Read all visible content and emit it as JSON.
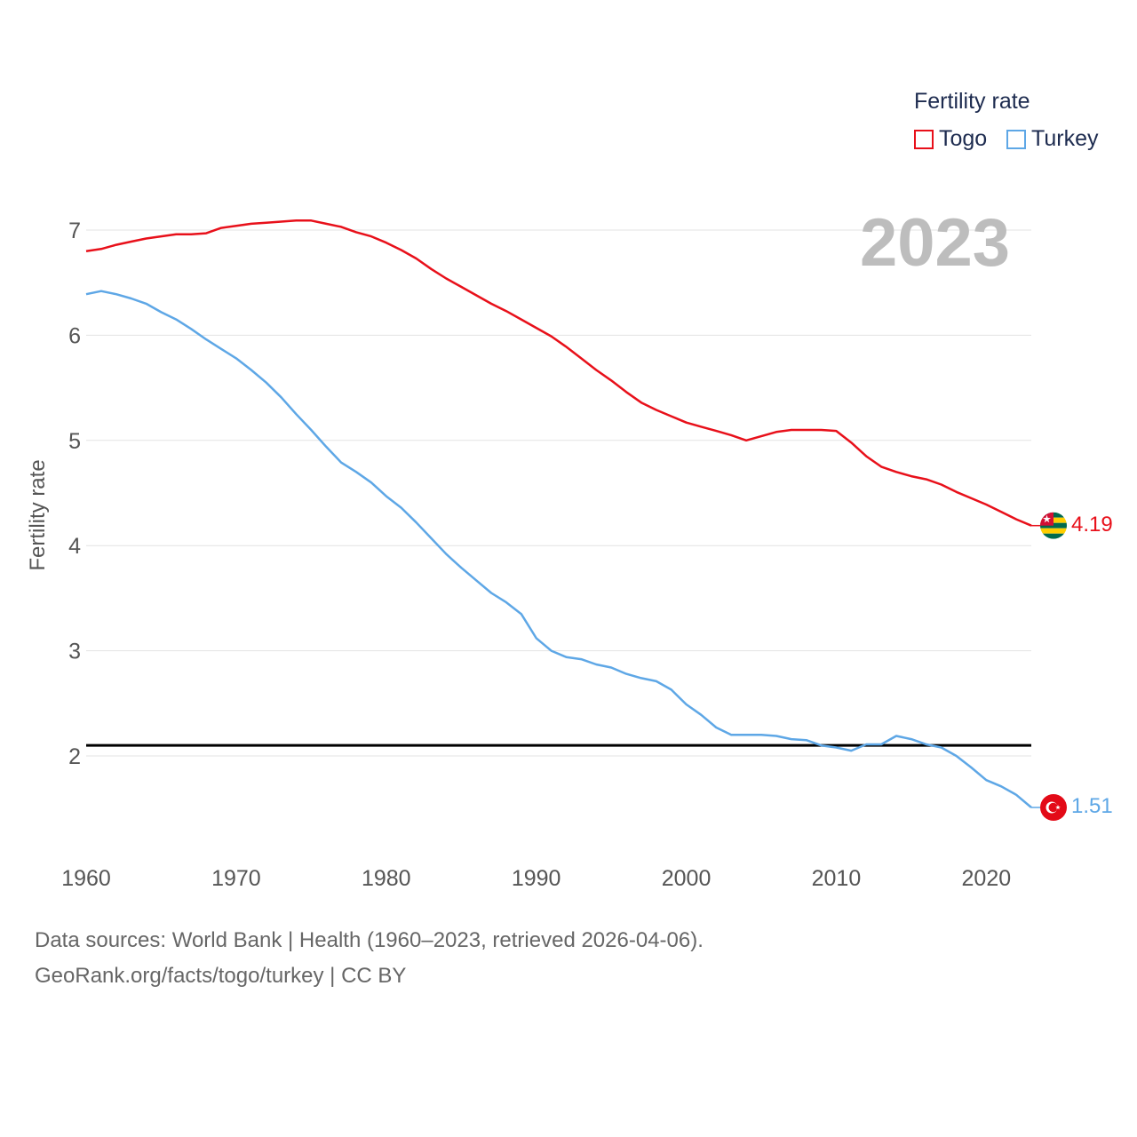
{
  "legend": {
    "title": "Fertility rate",
    "items": [
      {
        "name": "Togo",
        "color": "#e8101a"
      },
      {
        "name": "Turkey",
        "color": "#5ea7e6"
      }
    ]
  },
  "year_label": "2023",
  "footer": {
    "line1": "Data sources: World Bank | Health (1960–2023, retrieved 2026-04-06).",
    "line2": "GeoRank.org/facts/togo/turkey | CC BY"
  },
  "end_labels": {
    "togo": "4.19",
    "turkey": "1.51"
  },
  "flags": {
    "togo": "togo-flag-icon",
    "turkey": "turkey-flag-icon"
  },
  "chart_data": {
    "type": "line",
    "title": "",
    "xlabel": "",
    "ylabel": "Fertility rate",
    "xlim": [
      1960,
      2023
    ],
    "ylim": [
      1.2,
      7.4
    ],
    "x_ticks": [
      1960,
      1970,
      1980,
      1990,
      2000,
      2010,
      2020
    ],
    "y_ticks": [
      2,
      3,
      4,
      5,
      6,
      7
    ],
    "grid": true,
    "reference_line": {
      "y": 2.1,
      "color": "#000000"
    },
    "x": [
      1960,
      1961,
      1962,
      1963,
      1964,
      1965,
      1966,
      1967,
      1968,
      1969,
      1970,
      1971,
      1972,
      1973,
      1974,
      1975,
      1976,
      1977,
      1978,
      1979,
      1980,
      1981,
      1982,
      1983,
      1984,
      1985,
      1986,
      1987,
      1988,
      1989,
      1990,
      1991,
      1992,
      1993,
      1994,
      1995,
      1996,
      1997,
      1998,
      1999,
      2000,
      2001,
      2002,
      2003,
      2004,
      2005,
      2006,
      2007,
      2008,
      2009,
      2010,
      2011,
      2012,
      2013,
      2014,
      2015,
      2016,
      2017,
      2018,
      2019,
      2020,
      2021,
      2022,
      2023
    ],
    "series": [
      {
        "name": "Togo",
        "color": "#e8101a",
        "values": [
          6.8,
          6.82,
          6.86,
          6.89,
          6.92,
          6.94,
          6.96,
          6.96,
          6.97,
          7.02,
          7.04,
          7.06,
          7.07,
          7.08,
          7.09,
          7.09,
          7.06,
          7.03,
          6.98,
          6.94,
          6.88,
          6.81,
          6.73,
          6.63,
          6.54,
          6.46,
          6.38,
          6.3,
          6.23,
          6.15,
          6.07,
          5.99,
          5.89,
          5.78,
          5.67,
          5.57,
          5.46,
          5.36,
          5.29,
          5.23,
          5.17,
          5.13,
          5.09,
          5.05,
          5.0,
          5.04,
          5.08,
          5.1,
          5.1,
          5.1,
          5.09,
          4.98,
          4.85,
          4.75,
          4.7,
          4.66,
          4.63,
          4.58,
          4.51,
          4.45,
          4.39,
          4.32,
          4.25,
          4.19
        ]
      },
      {
        "name": "Turkey",
        "color": "#5ea7e6",
        "values": [
          6.39,
          6.42,
          6.39,
          6.35,
          6.3,
          6.22,
          6.15,
          6.06,
          5.96,
          5.87,
          5.78,
          5.67,
          5.55,
          5.41,
          5.25,
          5.1,
          4.94,
          4.79,
          4.7,
          4.6,
          4.47,
          4.36,
          4.22,
          4.07,
          3.92,
          3.79,
          3.67,
          3.55,
          3.46,
          3.35,
          3.12,
          3.0,
          2.94,
          2.92,
          2.87,
          2.84,
          2.78,
          2.74,
          2.71,
          2.63,
          2.49,
          2.39,
          2.27,
          2.2,
          2.2,
          2.2,
          2.19,
          2.16,
          2.15,
          2.1,
          2.08,
          2.05,
          2.11,
          2.11,
          2.19,
          2.16,
          2.11,
          2.08,
          2.0,
          1.89,
          1.77,
          1.71,
          1.63,
          1.51
        ]
      }
    ]
  }
}
